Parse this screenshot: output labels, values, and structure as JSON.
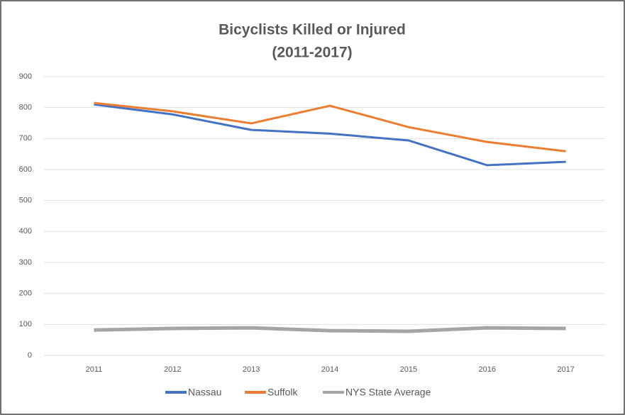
{
  "chart_data": {
    "type": "line",
    "title": "Bicyclists Killed or Injured",
    "subtitle": "(2011-2017)",
    "categories": [
      "2011",
      "2012",
      "2013",
      "2014",
      "2015",
      "2016",
      "2017"
    ],
    "series": [
      {
        "name": "Nassau",
        "color": "#4472c4",
        "values": [
          810,
          778,
          728,
          716,
          694,
          614,
          625
        ]
      },
      {
        "name": "Suffolk",
        "color": "#ed7d31",
        "values": [
          815,
          788,
          749,
          806,
          737,
          689,
          659
        ]
      },
      {
        "name": "NYS State Average",
        "color": "#a5a5a5",
        "values": [
          82,
          87,
          89,
          80,
          78,
          89,
          87
        ]
      }
    ],
    "ylim": [
      0,
      900
    ],
    "yticks": [
      0,
      100,
      200,
      300,
      400,
      500,
      600,
      700,
      800,
      900
    ],
    "grid": true,
    "legend": "bottom"
  }
}
